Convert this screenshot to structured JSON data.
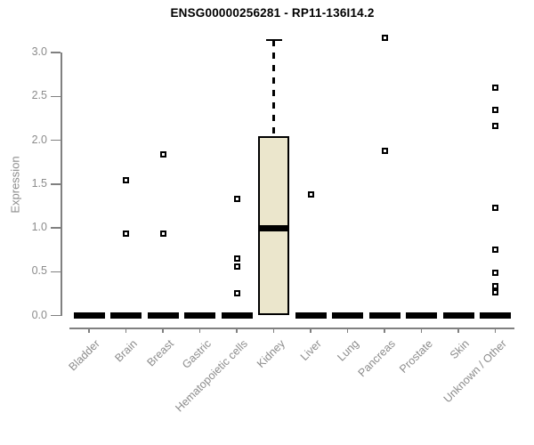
{
  "chart_data": {
    "type": "boxplot",
    "title": "ENSG00000256281 - RP11-136I14.2",
    "ylabel": "Expression",
    "xlabel": "",
    "ylim": [
      0.0,
      3.2
    ],
    "yticks": [
      "0.0",
      "0.5",
      "1.0",
      "1.5",
      "2.0",
      "2.5",
      "3.0"
    ],
    "ytick_values": [
      0.0,
      0.5,
      1.0,
      1.5,
      2.0,
      2.5,
      3.0
    ],
    "grid": false,
    "legend": "none",
    "categories": [
      "Bladder",
      "Brain",
      "Breast",
      "Gastric",
      "Hematopoietic cells",
      "Kidney",
      "Liver",
      "Lung",
      "Pancreas",
      "Prostate",
      "Skin",
      "Unknown / Other"
    ],
    "series": [
      {
        "category": "Bladder",
        "q1": 0,
        "median": 0,
        "q3": 0,
        "whisker_low": 0,
        "whisker_high": 0,
        "outliers": []
      },
      {
        "category": "Brain",
        "q1": 0,
        "median": 0,
        "q3": 0,
        "whisker_low": 0,
        "whisker_high": 0,
        "outliers": [
          1.54,
          0.93
        ]
      },
      {
        "category": "Breast",
        "q1": 0,
        "median": 0,
        "q3": 0,
        "whisker_low": 0,
        "whisker_high": 0,
        "outliers": [
          1.84,
          0.93
        ]
      },
      {
        "category": "Gastric",
        "q1": 0,
        "median": 0,
        "q3": 0,
        "whisker_low": 0,
        "whisker_high": 0,
        "outliers": []
      },
      {
        "category": "Hematopoietic cells",
        "q1": 0,
        "median": 0,
        "q3": 0,
        "whisker_low": 0,
        "whisker_high": 0,
        "outliers": [
          1.33,
          0.65,
          0.56,
          0.25
        ]
      },
      {
        "category": "Kidney",
        "q1": 0,
        "median": 1.0,
        "q3": 2.05,
        "whisker_low": 0,
        "whisker_high": 3.14,
        "outliers": []
      },
      {
        "category": "Liver",
        "q1": 0,
        "median": 0,
        "q3": 0,
        "whisker_low": 0,
        "whisker_high": 0,
        "outliers": [
          1.38
        ]
      },
      {
        "category": "Lung",
        "q1": 0,
        "median": 0,
        "q3": 0,
        "whisker_low": 0,
        "whisker_high": 0,
        "outliers": []
      },
      {
        "category": "Pancreas",
        "q1": 0,
        "median": 0,
        "q3": 0,
        "whisker_low": 0,
        "whisker_high": 0,
        "outliers": [
          3.17,
          1.88
        ]
      },
      {
        "category": "Prostate",
        "q1": 0,
        "median": 0,
        "q3": 0,
        "whisker_low": 0,
        "whisker_high": 0,
        "outliers": []
      },
      {
        "category": "Skin",
        "q1": 0,
        "median": 0,
        "q3": 0,
        "whisker_low": 0,
        "whisker_high": 0,
        "outliers": []
      },
      {
        "category": "Unknown / Other",
        "q1": 0,
        "median": 0,
        "q3": 0,
        "whisker_low": 0,
        "whisker_high": 0,
        "outliers": [
          2.6,
          2.35,
          2.16,
          1.23,
          0.75,
          0.49,
          0.34,
          0.26
        ]
      }
    ],
    "colors": {
      "box_fill": "#ebe6cc",
      "box_stroke": "#000000",
      "median": "#000000",
      "axis": "#808080",
      "tick_text": "#8c8c8c",
      "title_text": "#000000",
      "background": "#ffffff"
    }
  }
}
